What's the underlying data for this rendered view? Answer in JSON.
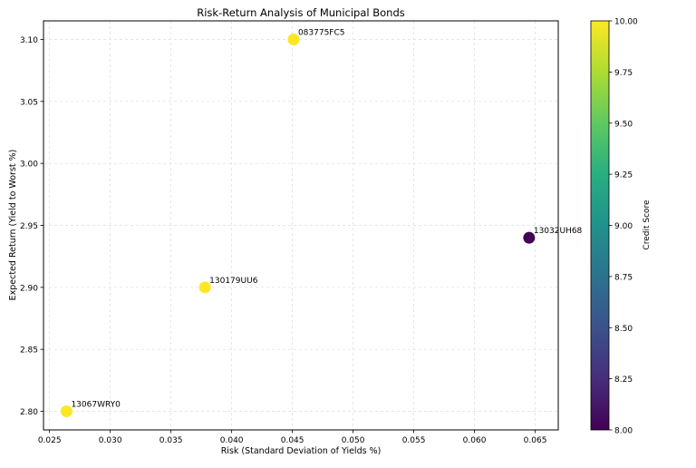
{
  "chart_data": {
    "type": "scatter",
    "title": "Risk-Return Analysis of Municipal Bonds",
    "xlabel": "Risk (Standard Deviation of Yields %)",
    "ylabel": "Expected Return (Yield to Worst %)",
    "xlim": [
      0.0245,
      0.0669
    ],
    "ylim": [
      2.785,
      3.115
    ],
    "xticks": [
      "0.025",
      "0.030",
      "0.035",
      "0.040",
      "0.045",
      "0.050",
      "0.055",
      "0.060",
      "0.065"
    ],
    "yticks": [
      "2.80",
      "2.85",
      "2.90",
      "2.95",
      "3.00",
      "3.05",
      "3.10"
    ],
    "grid": true,
    "points": [
      {
        "label": "13067WRY0",
        "x": 0.0264,
        "y": 2.8,
        "credit_score": 10
      },
      {
        "label": "130179UU6",
        "x": 0.0378,
        "y": 2.9,
        "credit_score": 10
      },
      {
        "label": "083775FC5",
        "x": 0.0451,
        "y": 3.1,
        "credit_score": 10
      },
      {
        "label": "13032UH68",
        "x": 0.0645,
        "y": 2.94,
        "credit_score": 8
      }
    ],
    "colorbar": {
      "label": "Credit Score",
      "colormap": "viridis",
      "range": [
        8.0,
        10.0
      ],
      "ticks": [
        "8.00",
        "8.25",
        "8.50",
        "8.75",
        "9.00",
        "9.25",
        "9.50",
        "9.75",
        "10.00"
      ]
    }
  }
}
